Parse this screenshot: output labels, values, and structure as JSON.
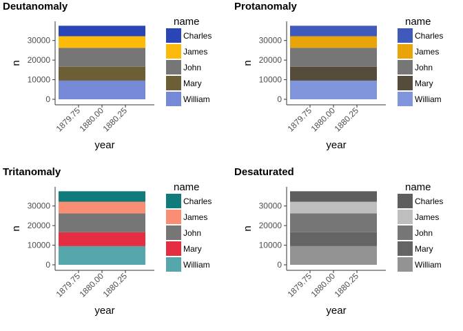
{
  "chart_data": [
    {
      "type": "bar",
      "stacked": true,
      "title": "Deutanomaly",
      "xlabel": "year",
      "ylabel": "n",
      "x_ticks": [
        "1879.75",
        "1880.00",
        "1880.25"
      ],
      "y_ticks": [
        "0",
        "10000",
        "20000",
        "30000"
      ],
      "ylim": [
        0,
        38000
      ],
      "categories": [
        "1880"
      ],
      "legend_title": "name",
      "legend_position": "right",
      "grid": false,
      "series": [
        {
          "name": "Charles",
          "values": [
            5348
          ],
          "color": "#2A45B7"
        },
        {
          "name": "James",
          "values": [
            5927
          ],
          "color": "#FCBA0B"
        },
        {
          "name": "John",
          "values": [
            9655
          ],
          "color": "#767676"
        },
        {
          "name": "Mary",
          "values": [
            7065
          ],
          "color": "#6C5E35"
        },
        {
          "name": "William",
          "values": [
            9532
          ],
          "color": "#7689D7"
        }
      ]
    },
    {
      "type": "bar",
      "stacked": true,
      "title": "Protanomaly",
      "xlabel": "year",
      "ylabel": "n",
      "x_ticks": [
        "1879.75",
        "1880.00",
        "1880.25"
      ],
      "y_ticks": [
        "0",
        "10000",
        "20000",
        "30000"
      ],
      "ylim": [
        0,
        38000
      ],
      "categories": [
        "1880"
      ],
      "legend_title": "name",
      "legend_position": "right",
      "grid": false,
      "series": [
        {
          "name": "Charles",
          "values": [
            5348
          ],
          "color": "#3F5ABC"
        },
        {
          "name": "James",
          "values": [
            5927
          ],
          "color": "#E8A409"
        },
        {
          "name": "John",
          "values": [
            9655
          ],
          "color": "#767676"
        },
        {
          "name": "Mary",
          "values": [
            7065
          ],
          "color": "#554C3B"
        },
        {
          "name": "William",
          "values": [
            9532
          ],
          "color": "#8095DB"
        }
      ]
    },
    {
      "type": "bar",
      "stacked": true,
      "title": "Tritanomaly",
      "xlabel": "year",
      "ylabel": "n",
      "x_ticks": [
        "1879.75",
        "1880.00",
        "1880.25"
      ],
      "y_ticks": [
        "0",
        "10000",
        "20000",
        "30000"
      ],
      "ylim": [
        0,
        38000
      ],
      "categories": [
        "1880"
      ],
      "legend_title": "name",
      "legend_position": "right",
      "grid": false,
      "series": [
        {
          "name": "Charles",
          "values": [
            5348
          ],
          "color": "#117A7A"
        },
        {
          "name": "James",
          "values": [
            5927
          ],
          "color": "#FA8E74"
        },
        {
          "name": "John",
          "values": [
            9655
          ],
          "color": "#767676"
        },
        {
          "name": "Mary",
          "values": [
            7065
          ],
          "color": "#E62E43"
        },
        {
          "name": "William",
          "values": [
            9532
          ],
          "color": "#56A7AC"
        }
      ]
    },
    {
      "type": "bar",
      "stacked": true,
      "title": "Desaturated",
      "xlabel": "year",
      "ylabel": "n",
      "x_ticks": [
        "1879.75",
        "1880.00",
        "1880.25"
      ],
      "y_ticks": [
        "0",
        "10000",
        "20000",
        "30000"
      ],
      "ylim": [
        0,
        38000
      ],
      "categories": [
        "1880"
      ],
      "legend_title": "name",
      "legend_position": "right",
      "grid": false,
      "series": [
        {
          "name": "Charles",
          "values": [
            5348
          ],
          "color": "#5E5E5E"
        },
        {
          "name": "James",
          "values": [
            5927
          ],
          "color": "#BEBEBE"
        },
        {
          "name": "John",
          "values": [
            9655
          ],
          "color": "#767676"
        },
        {
          "name": "Mary",
          "values": [
            7065
          ],
          "color": "#646464"
        },
        {
          "name": "William",
          "values": [
            9532
          ],
          "color": "#939393"
        }
      ]
    }
  ]
}
